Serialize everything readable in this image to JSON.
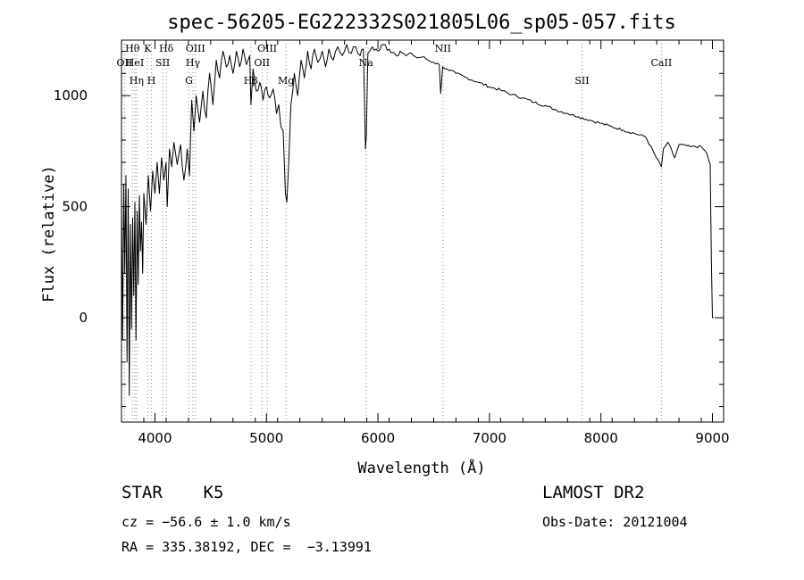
{
  "chart_data": {
    "type": "line",
    "title": "spec-56205-EG222332S021805L06_sp05-057.fits",
    "xlabel": "Wavelength (Å)",
    "ylabel": "Flux (relative)",
    "xlim": [
      3700,
      9100
    ],
    "ylim": [
      -470,
      1250
    ],
    "grid": false,
    "x_ticks": [
      4000,
      5000,
      6000,
      7000,
      8000,
      9000
    ],
    "y_ticks": [
      0,
      500,
      1000
    ],
    "x_tick_labels": [
      "4000",
      "5000",
      "6000",
      "7000",
      "8000",
      "9000"
    ],
    "y_tick_labels": [
      "0",
      "500",
      "1000"
    ],
    "series": [
      {
        "values_xy": [
          [
            3700,
            520
          ],
          [
            3710,
            -100
          ],
          [
            3720,
            600
          ],
          [
            3730,
            200
          ],
          [
            3740,
            640
          ],
          [
            3750,
            -200
          ],
          [
            3760,
            580
          ],
          [
            3770,
            -350
          ],
          [
            3780,
            420
          ],
          [
            3790,
            -50
          ],
          [
            3800,
            450
          ],
          [
            3810,
            100
          ],
          [
            3820,
            520
          ],
          [
            3830,
            -100
          ],
          [
            3840,
            480
          ],
          [
            3850,
            150
          ],
          [
            3860,
            550
          ],
          [
            3870,
            300
          ],
          [
            3880,
            430
          ],
          [
            3890,
            200
          ],
          [
            3900,
            560
          ],
          [
            3920,
            420
          ],
          [
            3940,
            640
          ],
          [
            3960,
            480
          ],
          [
            3980,
            660
          ],
          [
            4000,
            560
          ],
          [
            4020,
            700
          ],
          [
            4040,
            560
          ],
          [
            4060,
            720
          ],
          [
            4080,
            620
          ],
          [
            4100,
            700
          ],
          [
            4110,
            500
          ],
          [
            4130,
            760
          ],
          [
            4150,
            680
          ],
          [
            4170,
            790
          ],
          [
            4200,
            690
          ],
          [
            4230,
            780
          ],
          [
            4260,
            620
          ],
          [
            4290,
            760
          ],
          [
            4310,
            640
          ],
          [
            4330,
            980
          ],
          [
            4350,
            840
          ],
          [
            4370,
            1000
          ],
          [
            4400,
            880
          ],
          [
            4430,
            1020
          ],
          [
            4460,
            900
          ],
          [
            4490,
            1100
          ],
          [
            4520,
            960
          ],
          [
            4550,
            1160
          ],
          [
            4580,
            1080
          ],
          [
            4610,
            1200
          ],
          [
            4640,
            1130
          ],
          [
            4670,
            1180
          ],
          [
            4700,
            1100
          ],
          [
            4730,
            1200
          ],
          [
            4760,
            1130
          ],
          [
            4790,
            1210
          ],
          [
            4820,
            1140
          ],
          [
            4850,
            1180
          ],
          [
            4861,
            960
          ],
          [
            4880,
            1120
          ],
          [
            4910,
            1020
          ],
          [
            4940,
            1060
          ],
          [
            4970,
            980
          ],
          [
            5000,
            1040
          ],
          [
            5030,
            990
          ],
          [
            5060,
            1030
          ],
          [
            5090,
            920
          ],
          [
            5110,
            960
          ],
          [
            5130,
            860
          ],
          [
            5150,
            840
          ],
          [
            5170,
            560
          ],
          [
            5183,
            520
          ],
          [
            5200,
            700
          ],
          [
            5220,
            960
          ],
          [
            5250,
            1100
          ],
          [
            5280,
            1000
          ],
          [
            5310,
            1160
          ],
          [
            5340,
            1080
          ],
          [
            5370,
            1200
          ],
          [
            5400,
            1120
          ],
          [
            5430,
            1210
          ],
          [
            5460,
            1150
          ],
          [
            5500,
            1200
          ],
          [
            5530,
            1130
          ],
          [
            5560,
            1210
          ],
          [
            5600,
            1160
          ],
          [
            5640,
            1220
          ],
          [
            5680,
            1180
          ],
          [
            5720,
            1230
          ],
          [
            5760,
            1190
          ],
          [
            5800,
            1220
          ],
          [
            5840,
            1180
          ],
          [
            5870,
            1210
          ],
          [
            5888,
            760
          ],
          [
            5896,
            820
          ],
          [
            5910,
            1190
          ],
          [
            5950,
            1220
          ],
          [
            6000,
            1200
          ],
          [
            6050,
            1230
          ],
          [
            6100,
            1210
          ],
          [
            6150,
            1190
          ],
          [
            6200,
            1200
          ],
          [
            6250,
            1180
          ],
          [
            6300,
            1190
          ],
          [
            6350,
            1170
          ],
          [
            6400,
            1175
          ],
          [
            6450,
            1160
          ],
          [
            6500,
            1150
          ],
          [
            6550,
            1140
          ],
          [
            6563,
            1010
          ],
          [
            6580,
            1130
          ],
          [
            6620,
            1120
          ],
          [
            6700,
            1100
          ],
          [
            6800,
            1080
          ],
          [
            6900,
            1060
          ],
          [
            7000,
            1040
          ],
          [
            7100,
            1025
          ],
          [
            7200,
            1005
          ],
          [
            7300,
            990
          ],
          [
            7400,
            970
          ],
          [
            7500,
            955
          ],
          [
            7600,
            935
          ],
          [
            7700,
            920
          ],
          [
            7800,
            905
          ],
          [
            7900,
            890
          ],
          [
            8000,
            875
          ],
          [
            8100,
            860
          ],
          [
            8200,
            845
          ],
          [
            8300,
            830
          ],
          [
            8400,
            815
          ],
          [
            8498,
            720
          ],
          [
            8542,
            680
          ],
          [
            8560,
            760
          ],
          [
            8600,
            790
          ],
          [
            8662,
            720
          ],
          [
            8700,
            780
          ],
          [
            8800,
            770
          ],
          [
            8900,
            770
          ],
          [
            8950,
            740
          ],
          [
            8980,
            690
          ],
          [
            8990,
            260
          ],
          [
            9000,
            0
          ],
          [
            9010,
            0
          ]
        ]
      }
    ],
    "line_markers": [
      {
        "label": "Hθ",
        "x": 3798
      },
      {
        "label": "K",
        "x": 3934
      },
      {
        "label": "Hδ",
        "x": 4102
      },
      {
        "label": "OIII",
        "x": 4363
      },
      {
        "label": "OIII",
        "x": 5007
      },
      {
        "label": "Na",
        "x": 5893
      },
      {
        "label": "NII",
        "x": 6583
      },
      {
        "label": "SII",
        "x": 7830
      },
      {
        "label": "CaII",
        "x": 8542
      },
      {
        "label": "OII",
        "x": 3727
      },
      {
        "label": "HeI",
        "x": 3820
      },
      {
        "label": "SII",
        "x": 4069
      },
      {
        "label": "Hγ",
        "x": 4341
      },
      {
        "label": "G",
        "x": 4305
      },
      {
        "label": "Mg",
        "x": 5175
      },
      {
        "label": "Hβ",
        "x": 4861
      },
      {
        "label": "OII",
        "x": 4960
      },
      {
        "label": "Hη",
        "x": 3835
      },
      {
        "label": "H",
        "x": 3969
      }
    ]
  },
  "info": {
    "classification": "STAR    K5",
    "survey": "LAMOST DR2",
    "cz": "cz = −56.6 ± 1.0 km/s",
    "obs_date": "Obs-Date: 20121004",
    "coords": "RA = 335.38192, DEC =  −3.13991"
  },
  "colors": {
    "line": "#000000",
    "marker": "#888888",
    "background": "#ffffff"
  }
}
